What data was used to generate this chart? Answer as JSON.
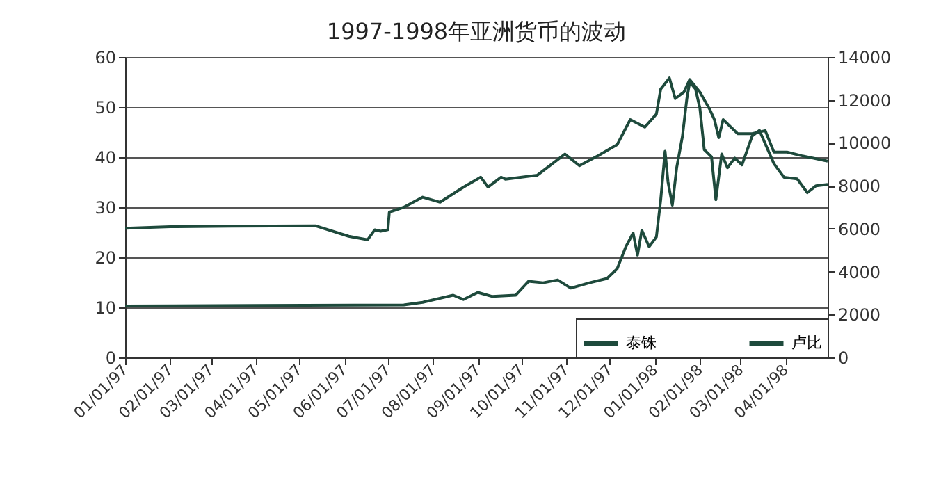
{
  "chart_data": {
    "type": "line",
    "title": "1997-1998年亚洲货币的波动",
    "xlim": [
      "1997-01-01",
      "1998-04-30"
    ],
    "xticks": [
      {
        "value": "1997-01-01",
        "label": "01/01/97"
      },
      {
        "value": "1997-02-01",
        "label": "02/01/97"
      },
      {
        "value": "1997-03-01",
        "label": "03/01/97"
      },
      {
        "value": "1997-04-01",
        "label": "04/01/97"
      },
      {
        "value": "1997-05-01",
        "label": "05/01/97"
      },
      {
        "value": "1997-06-01",
        "label": "06/01/97"
      },
      {
        "value": "1997-07-01",
        "label": "07/01/97"
      },
      {
        "value": "1997-08-01",
        "label": "08/01/97"
      },
      {
        "value": "1997-09-01",
        "label": "09/01/97"
      },
      {
        "value": "1997-10-01",
        "label": "10/01/97"
      },
      {
        "value": "1997-11-01",
        "label": "11/01/97"
      },
      {
        "value": "1997-12-01",
        "label": "12/01/97"
      },
      {
        "value": "1998-01-01",
        "label": "01/01/98"
      },
      {
        "value": "1998-02-01",
        "label": "02/01/98"
      },
      {
        "value": "1998-03-01",
        "label": "03/01/98"
      },
      {
        "value": "1998-04-01",
        "label": "04/01/98"
      }
    ],
    "ylim": [
      0,
      60
    ],
    "yticks": [
      0,
      10,
      20,
      30,
      40,
      50,
      60
    ],
    "y2lim": [
      0,
      14000
    ],
    "y2ticks": [
      0,
      2000,
      4000,
      6000,
      8000,
      10000,
      12000,
      14000
    ],
    "grid": "y",
    "legend": "bottom right",
    "line_style": "solid",
    "marker": "none",
    "series": [
      {
        "name": "泰铢",
        "color": "#1e4a3c",
        "x": [
          "1997-01-01",
          "1997-02-01",
          "1997-03-15",
          "1997-05-12",
          "1997-06-04",
          "1997-06-17",
          "1997-06-22",
          "1997-06-26",
          "1997-07-01",
          "1997-07-02",
          "1997-07-12",
          "1997-07-25",
          "1997-08-06",
          "1997-08-22",
          "1997-09-03",
          "1997-09-08",
          "1997-09-17",
          "1997-09-20",
          "1997-10-12",
          "1997-10-31",
          "1997-11-10",
          "1997-11-23",
          "1997-12-06",
          "1997-12-15",
          "1997-12-25",
          "1998-01-02",
          "1998-01-05",
          "1998-01-11",
          "1998-01-15",
          "1998-01-21",
          "1998-01-25",
          "1998-02-01",
          "1998-02-08",
          "1998-02-11",
          "1998-02-14",
          "1998-02-17",
          "1998-02-27",
          "1998-03-09",
          "1998-03-18",
          "1998-03-24",
          "1998-04-02",
          "1998-04-12",
          "1998-04-30"
        ],
        "values": [
          25.8,
          26.1,
          26.2,
          26.3,
          24.2,
          23.5,
          25.5,
          25.2,
          25.5,
          29,
          30,
          32,
          31,
          34,
          36,
          34,
          36,
          35.6,
          36.4,
          40.6,
          38.3,
          40.3,
          42.5,
          47.5,
          46,
          48.6,
          53.6,
          55.8,
          51.7,
          53,
          55.5,
          53,
          49.4,
          47.5,
          43.9,
          47.5,
          44.7,
          44.7,
          45.3,
          41,
          41,
          40.3,
          39.2
        ]
      },
      {
        "name": "卢比",
        "color": "#1e4a3c",
        "axis": "y2",
        "x": [
          "1997-01-01",
          "1997-04-01",
          "1997-07-12",
          "1997-07-25",
          "1997-08-15",
          "1997-08-22",
          "1997-09-01",
          "1997-09-11",
          "1997-09-27",
          "1997-10-06",
          "1997-10-16",
          "1997-10-26",
          "1997-11-04",
          "1997-11-17",
          "1997-11-29",
          "1997-12-06",
          "1997-12-12",
          "1997-12-17",
          "1997-12-20",
          "1997-12-23",
          "1997-12-28",
          "1998-01-02",
          "1998-01-05",
          "1998-01-08",
          "1998-01-10",
          "1998-01-13",
          "1998-01-16",
          "1998-01-20",
          "1998-01-23",
          "1998-01-25",
          "1998-01-29",
          "1998-02-01",
          "1998-02-04",
          "1998-02-09",
          "1998-02-12",
          "1998-02-16",
          "1998-02-20",
          "1998-02-25",
          "1998-03-02",
          "1998-03-09",
          "1998-03-14",
          "1998-03-24",
          "1998-03-31",
          "1998-04-09",
          "1998-04-16",
          "1998-04-22",
          "1998-04-30"
        ],
        "values": [
          2400,
          2420,
          2450,
          2570,
          2900,
          2700,
          3030,
          2840,
          2900,
          3550,
          3480,
          3610,
          3230,
          3480,
          3680,
          4130,
          5160,
          5800,
          4770,
          5930,
          5160,
          5610,
          7350,
          9610,
          8190,
          7100,
          8840,
          10320,
          12060,
          12840,
          12510,
          11610,
          9680,
          9350,
          7350,
          9480,
          8840,
          9290,
          8970,
          10320,
          10580,
          9030,
          8390,
          8320,
          7680,
          8000,
          8060
        ]
      }
    ]
  }
}
